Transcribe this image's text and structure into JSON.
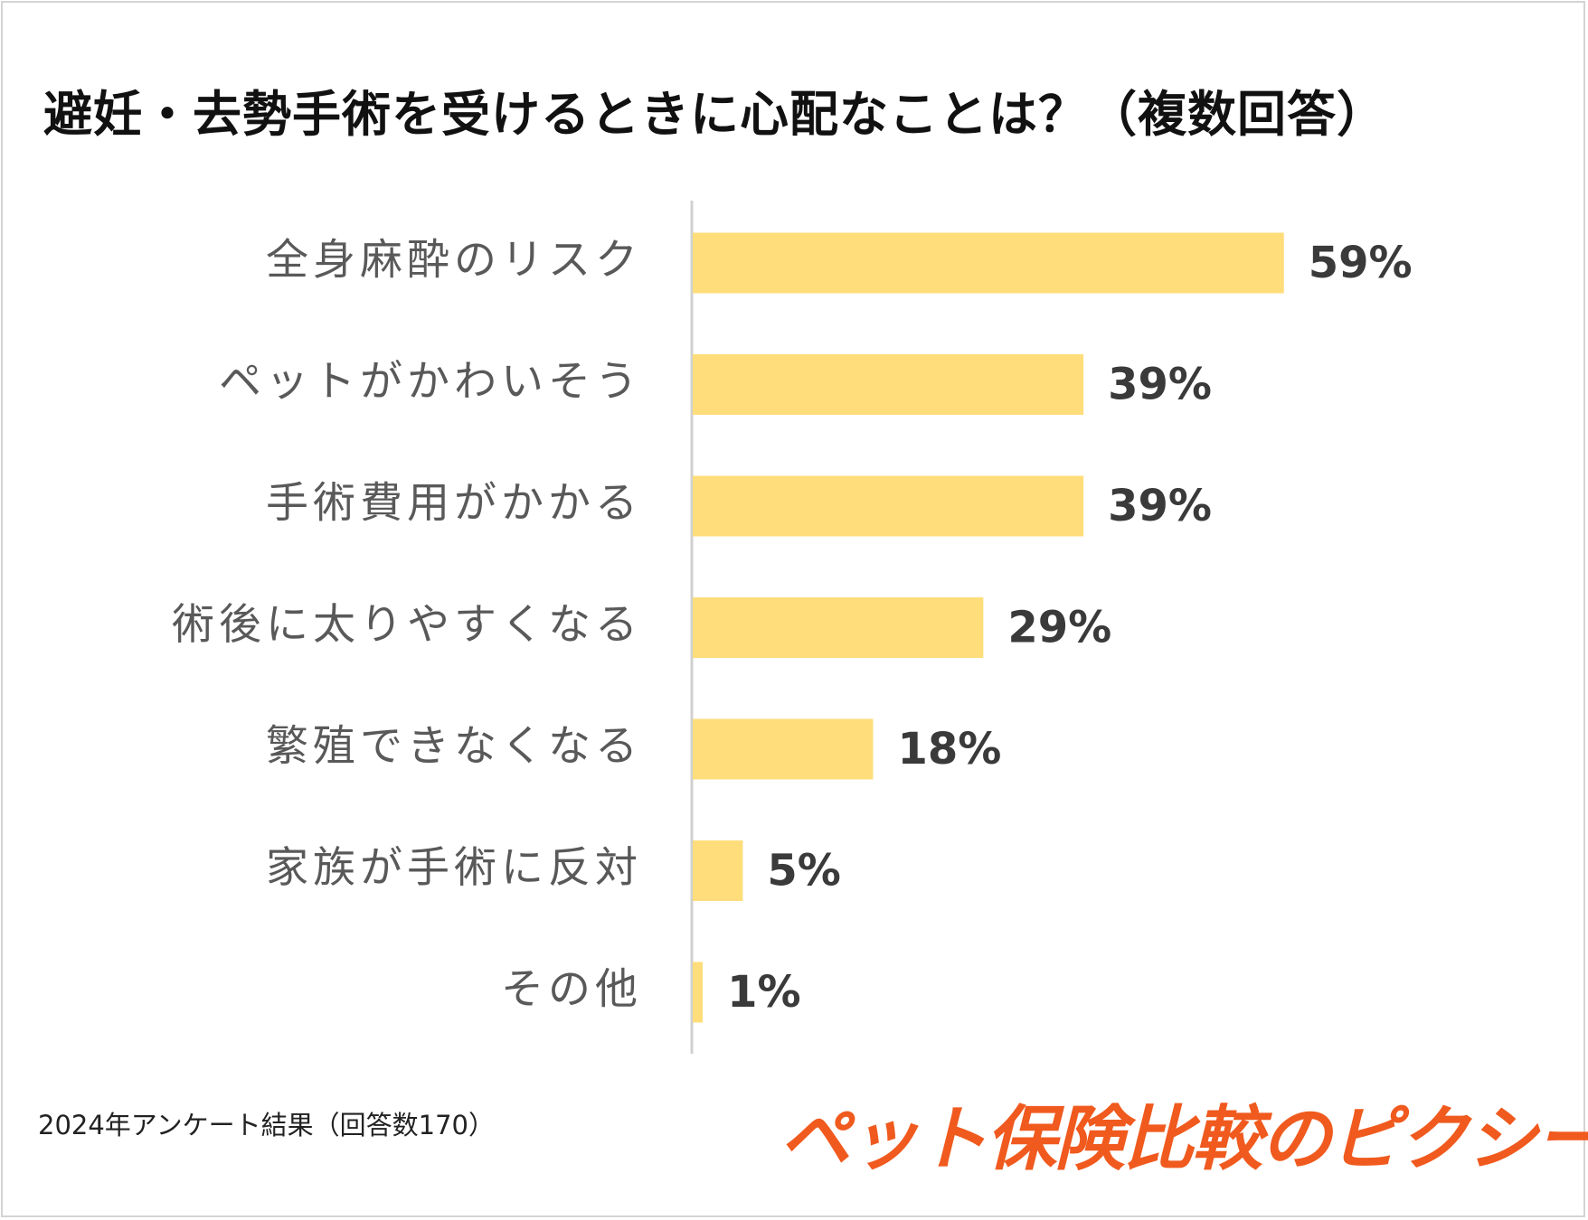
{
  "title": "避妊・去勢手術を受けるときに心配なことは？（複数回答）",
  "footnote": "2024年アンケート結果（回答数170）",
  "logo_text": "ペット保険比較のピクシー",
  "colors": {
    "bar": "#ffdd7a",
    "axis": "#d0d0d0",
    "logo": "#f05a1e"
  },
  "chart_data": {
    "type": "bar",
    "orientation": "horizontal",
    "categories": [
      "全身麻酔のリスク",
      "ペットがかわいそう",
      "手術費用がかかる",
      "術後に太りやすくなる",
      "繁殖できなくなる",
      "家族が手術に反対",
      "その他"
    ],
    "values": [
      59,
      39,
      39,
      29,
      18,
      5,
      1
    ],
    "value_labels": [
      "59%",
      "39%",
      "39%",
      "29%",
      "18%",
      "5%",
      "1%"
    ],
    "unit": "%",
    "xlim": [
      0,
      100
    ],
    "grid": false,
    "legend": "none"
  }
}
